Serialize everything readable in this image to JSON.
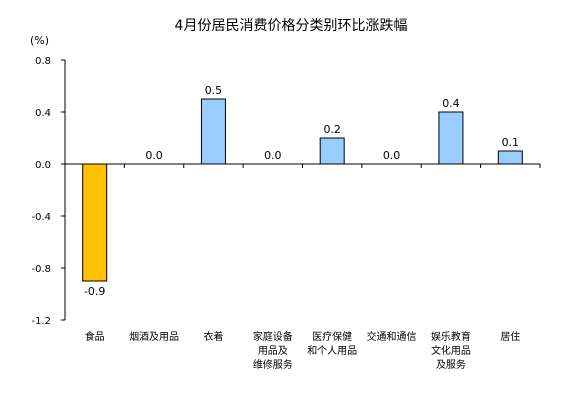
{
  "chart_data": {
    "type": "bar",
    "title": "4月份居民消费价格分类别环比涨跌幅",
    "unit_label": "(%)",
    "categories": [
      [
        "食品"
      ],
      [
        "烟酒及用品"
      ],
      [
        "衣着"
      ],
      [
        "家庭设备",
        "用品及",
        "维修服务"
      ],
      [
        "医疗保健",
        "和个人用品"
      ],
      [
        "交通和通信"
      ],
      [
        "娱乐教育",
        "文化用品",
        "及服务"
      ],
      [
        "居住"
      ]
    ],
    "values": [
      -0.9,
      0.0,
      0.5,
      0.0,
      0.2,
      0.0,
      0.4,
      0.1
    ],
    "value_labels": [
      "-0.9",
      "0.0",
      "0.5",
      "0.0",
      "0.2",
      "0.0",
      "0.4",
      "0.1"
    ],
    "ylim": [
      -1.2,
      0.8
    ],
    "yticks": [
      -1.2,
      -0.8,
      -0.4,
      0.0,
      0.4,
      0.8
    ],
    "ytick_labels": [
      "-1.2",
      "-0.8",
      "-0.4",
      "0.0",
      "0.4",
      "0.8"
    ],
    "xlabel": "",
    "ylabel": "",
    "grid": false,
    "legend": "none",
    "colors": {
      "negative": "#FFC000",
      "positive": "#99CCFF",
      "outline": "#000000",
      "axis": "#000000"
    }
  }
}
